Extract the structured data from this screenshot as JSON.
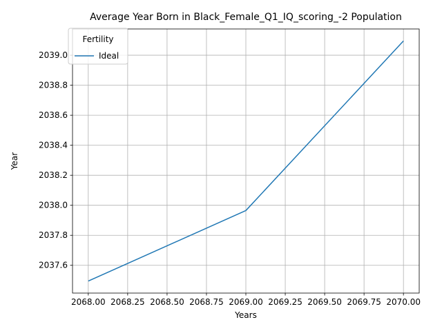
{
  "chart_data": {
    "type": "line",
    "title": "Average Year Born in Black_Female_Q1_IQ_scoring_-2 Population",
    "xlabel": "Years",
    "ylabel": "Year",
    "xlim": [
      2067.9,
      2070.1
    ],
    "ylim": [
      2037.415,
      2039.175
    ],
    "grid": true,
    "legend": {
      "title": "Fertility",
      "placement": "top-left"
    },
    "x_ticks": [
      2068.0,
      2068.25,
      2068.5,
      2068.75,
      2069.0,
      2069.25,
      2069.5,
      2069.75,
      2070.0
    ],
    "x_tick_labels": [
      "2068.00",
      "2068.25",
      "2068.50",
      "2068.75",
      "2069.00",
      "2069.25",
      "2069.50",
      "2069.75",
      "2070.00"
    ],
    "y_ticks": [
      2037.6,
      2037.8,
      2038.0,
      2038.2,
      2038.4,
      2038.6,
      2038.8,
      2039.0
    ],
    "y_tick_labels": [
      "2037.6",
      "2037.8",
      "2038.0",
      "2038.2",
      "2038.4",
      "2038.6",
      "2038.8",
      "2039.0"
    ],
    "series": [
      {
        "name": "Ideal",
        "color": "#1f77b4",
        "x": [
          2068,
          2069,
          2070
        ],
        "y": [
          2037.495,
          2037.965,
          2039.095
        ]
      }
    ]
  }
}
